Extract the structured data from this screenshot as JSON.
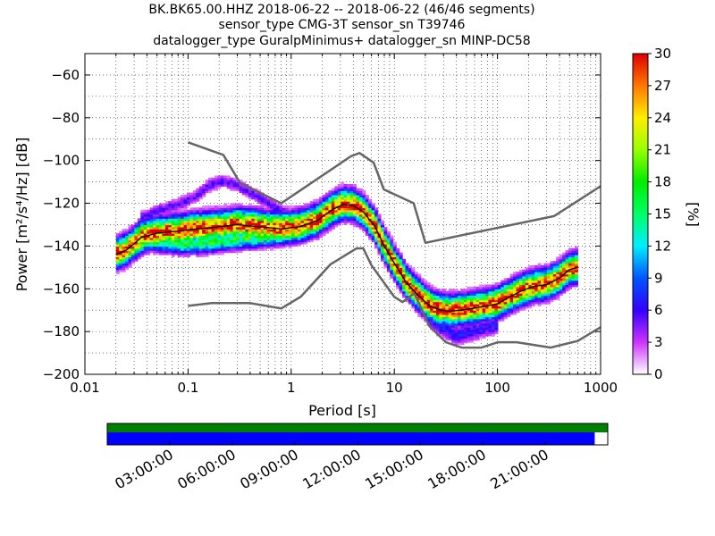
{
  "title_lines": [
    "BK.BK65.00.HHZ   2018-06-22 -- 2018-06-22  (46/46 segments)",
    "sensor_type CMG-3T sensor_sn T39746",
    "datalogger_type GuralpMinimus+ datalogger_sn MINP-DC58"
  ],
  "chart_data": {
    "type": "heatmap",
    "xlabel": "Period [s]",
    "ylabel": "Power [m²/s⁴/Hz] [dB]",
    "x_scale": "log",
    "xlim": [
      0.01,
      1000
    ],
    "ylim": [
      -200,
      -50
    ],
    "x_ticks": [
      0.01,
      0.1,
      1,
      10,
      100,
      1000
    ],
    "x_tick_labels": [
      "0.01",
      "0.1",
      "1",
      "10",
      "100",
      "1000"
    ],
    "y_ticks": [
      -200,
      -180,
      -160,
      -140,
      -120,
      -100,
      -80,
      -60
    ],
    "y_tick_labels": [
      "−200",
      "−180",
      "−160",
      "−140",
      "−120",
      "−100",
      "−80",
      "−60"
    ],
    "grid": true,
    "colorbar": {
      "label": "[%]",
      "range": [
        0,
        30
      ],
      "ticks": [
        0,
        3,
        6,
        9,
        12,
        15,
        18,
        21,
        24,
        27,
        30
      ],
      "colormap": "pqlx"
    },
    "noise_models": [
      {
        "name": "NHNM",
        "color": "#666666",
        "x": [
          0.1,
          0.22,
          0.32,
          0.8,
          3.8,
          4.6,
          6.3,
          7.9,
          15.4,
          20,
          354,
          1000
        ],
        "y": [
          -91.5,
          -97.4,
          -110.5,
          -120,
          -98,
          -96.5,
          -101,
          -113.5,
          -120,
          -138.5,
          -126,
          -112
        ]
      },
      {
        "name": "NLNM",
        "color": "#666666",
        "x": [
          0.1,
          0.17,
          0.4,
          0.8,
          1.24,
          2.4,
          4.3,
          5,
          6,
          10,
          12,
          15.6,
          21.9,
          31.6,
          45,
          70,
          101,
          154,
          328,
          600,
          1000
        ],
        "y": [
          -168,
          -166.7,
          -166.7,
          -169.2,
          -163.7,
          -148.6,
          -141.1,
          -141.1,
          -149,
          -163.8,
          -166.2,
          -162.1,
          -177.5,
          -185,
          -187.5,
          -187.5,
          -185,
          -185,
          -187.5,
          -184.4,
          -178
        ]
      }
    ],
    "mode": {
      "color": "#000000",
      "x": [
        0.02,
        0.025,
        0.03,
        0.035,
        0.05,
        0.08,
        0.12,
        0.2,
        0.3,
        0.5,
        0.8,
        1.2,
        1.8,
        2.5,
        3.2,
        4,
        5,
        6.5,
        8,
        10,
        13,
        17,
        22,
        28,
        35,
        45,
        60,
        80,
        100,
        130,
        170,
        220,
        300,
        400,
        500,
        600
      ],
      "y": [
        -144,
        -142,
        -139,
        -136,
        -134,
        -133,
        -132,
        -131,
        -130,
        -131,
        -132,
        -131,
        -128,
        -123,
        -120.5,
        -121,
        -124,
        -131,
        -140,
        -148,
        -157,
        -163,
        -168,
        -170,
        -170.5,
        -170,
        -169,
        -168,
        -167,
        -164,
        -161,
        -159,
        -158,
        -155,
        -151,
        -150
      ]
    },
    "pdf_lower_arm": {
      "x": [
        0.03,
        0.05,
        0.08,
        0.12,
        0.2,
        0.3,
        0.5,
        0.8
      ],
      "y": [
        -136,
        -138,
        -139,
        -139,
        -138,
        -137,
        -136,
        -135
      ]
    },
    "pdf_upper_arm": {
      "x": [
        0.035,
        0.05,
        0.08,
        0.12,
        0.16,
        0.22,
        0.3,
        0.5,
        0.8,
        1.2
      ],
      "y": [
        -127,
        -124,
        -121,
        -117,
        -112,
        -110,
        -112,
        -118,
        -124,
        -127
      ]
    },
    "pdf_low_tail": {
      "x": [
        20,
        28,
        40,
        60,
        80,
        100
      ],
      "y": [
        -172,
        -178,
        -182,
        -180,
        -178,
        -177
      ]
    },
    "timeline": {
      "tick_labels": [
        "03:00:00",
        "06:00:00",
        "09:00:00",
        "12:00:00",
        "15:00:00",
        "18:00:00",
        "21:00:00"
      ],
      "top_color": "#008000",
      "bottom_color": "#0000ff",
      "data_end_fraction": 0.974
    }
  }
}
